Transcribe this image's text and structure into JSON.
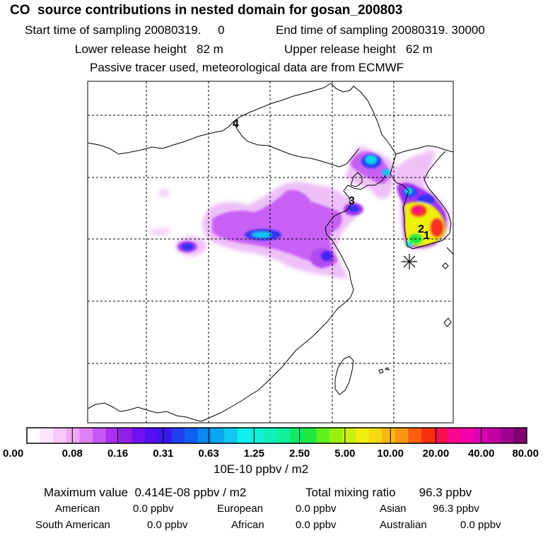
{
  "header": {
    "title": "CO  source contributions in nested domain for gosan_200803",
    "start_label": "Start time of sampling 20080319.     0",
    "end_label": "End time of sampling 20080319. 30000",
    "lower_label": "Lower release height   82 m",
    "upper_label": "Upper release height   62 m",
    "tracer_label": "Passive tracer used, meteorological data are from ECMWF"
  },
  "chart_data": {
    "type": "heatmap",
    "title": "CO  source contributions in nested domain for gosan_200803",
    "colorbar": {
      "tick_labels": [
        "0.00",
        "0.08",
        "0.16",
        "0.31",
        "0.63",
        "1.25",
        "2.50",
        "5.00",
        "10.00",
        "20.00",
        "40.00",
        "80.00"
      ],
      "unit_label": "10E-10 ppbv / m2",
      "colors": [
        "#ffffff",
        "#fde4fd",
        "#f8c8f8",
        "#f0a8f5",
        "#e080f5",
        "#c858f5",
        "#a830f0",
        "#9020e8",
        "#7010f0",
        "#5010f0",
        "#3818f0",
        "#2040f0",
        "#1060f0",
        "#0a88f0",
        "#0aa8f0",
        "#10c8f0",
        "#10f0f0",
        "#10f0d8",
        "#10f0b8",
        "#10f098",
        "#10e868",
        "#20e840",
        "#60f020",
        "#98f010",
        "#c8f010",
        "#f0f010",
        "#f8d810",
        "#f8b810",
        "#f89810",
        "#f86010",
        "#f83010",
        "#f81050",
        "#f80890",
        "#f000a8",
        "#d800b0",
        "#c000a0",
        "#a00090",
        "#800070"
      ]
    },
    "markers": [
      {
        "label": "4"
      },
      {
        "label": "3"
      },
      {
        "label": "2"
      },
      {
        "label": "1"
      }
    ],
    "receptor": "gosan",
    "summary": {
      "max_value": "0.414E-08",
      "max_unit": "ppbv / m2",
      "total_mixing_ratio": "96.3",
      "total_unit": "ppbv"
    },
    "regions": [
      {
        "name": "American",
        "value": "0.0 ppbv"
      },
      {
        "name": "European",
        "value": "0.0 ppbv"
      },
      {
        "name": "Asian",
        "value": "96.3 ppbv"
      },
      {
        "name": "South American",
        "value": "0.0 ppbv"
      },
      {
        "name": "African",
        "value": "0.0 ppbv"
      },
      {
        "name": "Australian",
        "value": "0.0 ppbv"
      }
    ]
  },
  "footer": {
    "max_line": "Maximum value  0.414E-08 ppbv / m2",
    "total_line": "Total mixing ratio       96.3 ppbv"
  }
}
